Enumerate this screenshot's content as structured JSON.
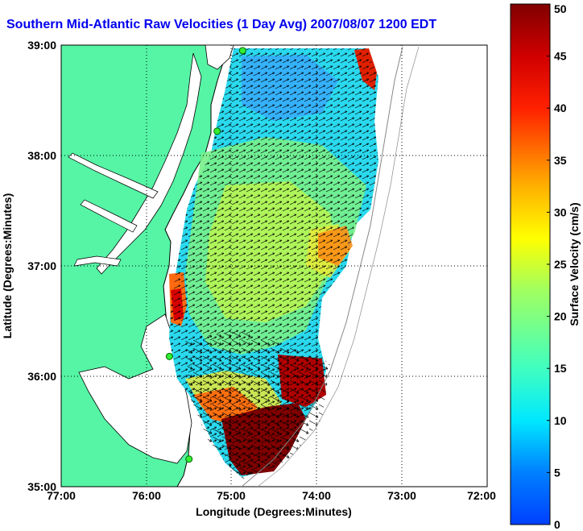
{
  "title": "Southern Mid-Atlantic Raw Velocities (1 Day Avg) 2007/08/07 1200 EDT",
  "colors": {
    "land": "#55f5a5",
    "title": "#0000ee",
    "arrow": "#000000",
    "coast": "#000000"
  },
  "chart_data": {
    "type": "heatmap",
    "title": "Southern Mid-Atlantic Raw Velocities (1 Day Avg) 2007/08/07 1200 EDT",
    "xlabel": "Longitude (Degrees:Minutes)",
    "ylabel": "Latitude (Degrees:Minutes)",
    "x_ticks": [
      "77:00",
      "76:00",
      "75:00",
      "74:00",
      "73:00",
      "72:00"
    ],
    "y_ticks": [
      "39:00",
      "38:00",
      "37:00",
      "36:00",
      "35:00"
    ],
    "xlim": [
      -77,
      -72
    ],
    "ylim": [
      35,
      39
    ],
    "grid": true,
    "colorbar": {
      "label": "Surface Velocity (cm/s)",
      "min": 0,
      "max": 50,
      "ticks": [
        "0",
        "5",
        "10",
        "15",
        "20",
        "25",
        "30",
        "35",
        "40",
        "45",
        "50"
      ]
    },
    "stations": [
      {
        "lon": -74.87,
        "lat": 38.95
      },
      {
        "lon": -75.17,
        "lat": 38.22
      },
      {
        "lon": -75.73,
        "lat": 36.18
      },
      {
        "lon": -75.5,
        "lat": 35.25
      }
    ]
  }
}
